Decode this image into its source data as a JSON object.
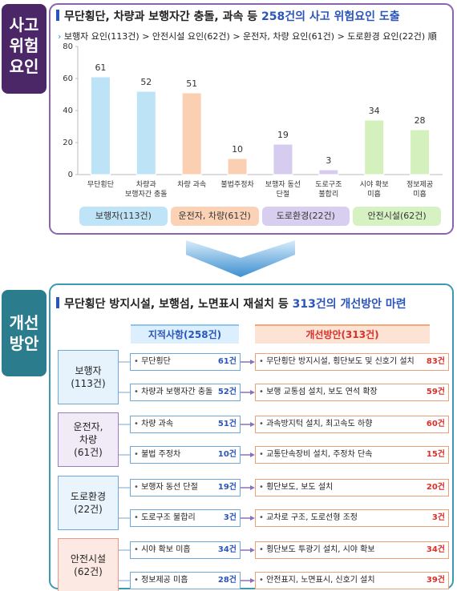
{
  "top": {
    "side_label": "사고\n위험\n요인",
    "title": "무단횡단, 차량과 보행자간 충돌, 과속 등",
    "title_highlight": "258건의 사고 위험요인 도출",
    "subtitle": "보행자 요인(113건) > 안전시설 요인(62건) > 운전자, 차량 요인(61건) > 도로환경 요인(22건) 順",
    "groups": [
      "보행자(113건)",
      "운전자, 차량(61건)",
      "도로환경(22건)",
      "안전시설(62건)"
    ],
    "group_colors": [
      "#bfe3f7",
      "#fbd2b6",
      "#d8cff0",
      "#d6f2c2"
    ]
  },
  "chart_data": {
    "type": "bar",
    "categories": [
      "무단횡단",
      "차량과\n보행자간 충돌",
      "차량 과속",
      "불법주정차",
      "보행자 동선\n단절",
      "도로구조\n불합리",
      "시야 확보\n미흡",
      "정보제공\n미흡"
    ],
    "values": [
      61,
      52,
      51,
      10,
      19,
      3,
      34,
      28
    ],
    "colors": [
      "#bde3f7",
      "#bde3f7",
      "#fbd0b2",
      "#fbd0b2",
      "#d5ccef",
      "#d5ccef",
      "#d4f1bd",
      "#d4f1bd"
    ],
    "ylim": [
      0,
      80
    ],
    "yticks": [
      0,
      20,
      40,
      60,
      80
    ]
  },
  "bottom": {
    "side_label": "개선\n방안",
    "title": "무단횡단 방지시설, 보행섬, 노면표시 재설치 등",
    "title_highlight": "313건의 개선방안 마련",
    "header_left": "지적사항(258건)",
    "header_right": "개선방안(313건)",
    "groups": [
      {
        "label": "보행자\n(113건)",
        "items": [
          {
            "issue": "무단횡단",
            "count": "61건",
            "action": "무단횡단 방지시설, 횡단보도 및 신호기 설치",
            "action_count": "83건"
          },
          {
            "issue": "차량과 보행자간 충돌",
            "count": "52건",
            "action": "보행 교통섬 설치, 보도 연석 확장",
            "action_count": "59건"
          }
        ]
      },
      {
        "label": "운전자,\n차량\n(61건)",
        "items": [
          {
            "issue": "차량 과속",
            "count": "51건",
            "action": "과속방지턱 설치, 최고속도 하향",
            "action_count": "60건"
          },
          {
            "issue": "불법 주정차",
            "count": "10건",
            "action": "교통단속장비 설치, 주정차 단속",
            "action_count": "15건"
          }
        ]
      },
      {
        "label": "도로환경\n(22건)",
        "items": [
          {
            "issue": "보행자 동선 단절",
            "count": "19건",
            "action": "횡단보도, 보도 설치",
            "action_count": "20건"
          },
          {
            "issue": "도로구조 불합리",
            "count": "3건",
            "action": "교차로 구조, 도로선형 조정",
            "action_count": "3건"
          }
        ]
      },
      {
        "label": "안전시설\n(62건)",
        "items": [
          {
            "issue": "시야 확보 미흡",
            "count": "34건",
            "action": "횡단보도 투광기 설치, 시야 확보",
            "action_count": "34건"
          },
          {
            "issue": "정보제공 미흡",
            "count": "28건",
            "action": "안전표지, 노면표시, 신호기 설치",
            "action_count": "39건"
          }
        ]
      }
    ]
  }
}
